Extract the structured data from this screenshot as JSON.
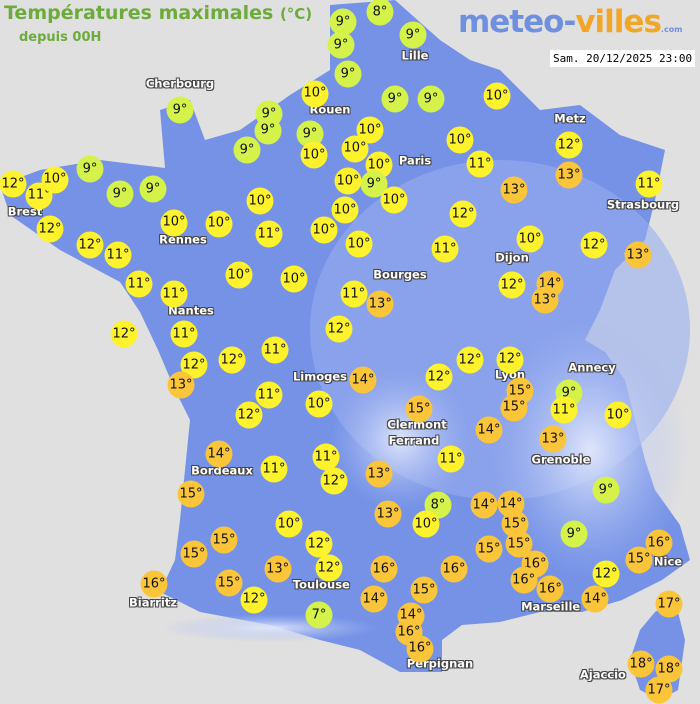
{
  "header": {
    "title": "Températures maximales",
    "unit": "(°C)",
    "subtitle": "depuis 00H",
    "logo": {
      "part1": "meteo-",
      "part2": "villes",
      "part3": ".com"
    },
    "datetime": "Sam. 20/12/2025 23:00"
  },
  "colors": {
    "land": "#7592e6",
    "sea": "#e1e0e0",
    "cold": "#d4f24a",
    "mild": "#fdf22b",
    "warm": "#fbc53a"
  },
  "cities": [
    "Cherbourg",
    "Lille",
    "Rouen",
    "Paris",
    "Metz",
    "Strasbourg",
    "Brest",
    "Rennes",
    "Dijon",
    "Bourges",
    "Nantes",
    "Annecy",
    "Limoges",
    "Lyon",
    "Clermont",
    "Ferrand",
    "Grenoble",
    "Bordeaux",
    "Biarritz",
    "Toulouse",
    "Marseille",
    "Nice",
    "Perpignan",
    "Ajaccio"
  ],
  "temperatures": [
    9,
    8,
    9,
    9,
    9,
    10,
    9,
    9,
    10,
    9,
    9,
    9,
    9,
    9,
    10,
    10,
    10,
    10,
    9,
    10,
    10,
    10,
    10,
    11,
    13,
    12,
    13,
    11,
    12,
    11,
    10,
    9,
    9,
    9,
    12,
    12,
    11,
    10,
    10,
    10,
    11,
    10,
    10,
    11,
    12,
    10,
    12,
    13,
    11,
    11,
    10,
    10,
    11,
    13,
    12,
    14,
    13,
    12,
    11,
    12,
    12,
    13,
    12,
    11,
    11,
    12,
    10,
    14,
    11,
    11,
    12,
    15,
    10,
    12,
    15,
    15,
    13,
    12,
    16,
    15,
    12,
    7,
    12,
    12,
    12,
    14,
    15,
    15,
    9,
    11,
    10,
    15,
    14,
    13,
    11,
    13,
    8,
    10,
    14,
    14,
    15,
    15,
    15,
    13,
    16,
    16,
    15,
    14,
    16,
    16,
    16,
    9,
    9,
    16,
    15,
    12,
    14,
    17,
    14,
    16,
    16,
    18,
    18,
    17
  ]
}
